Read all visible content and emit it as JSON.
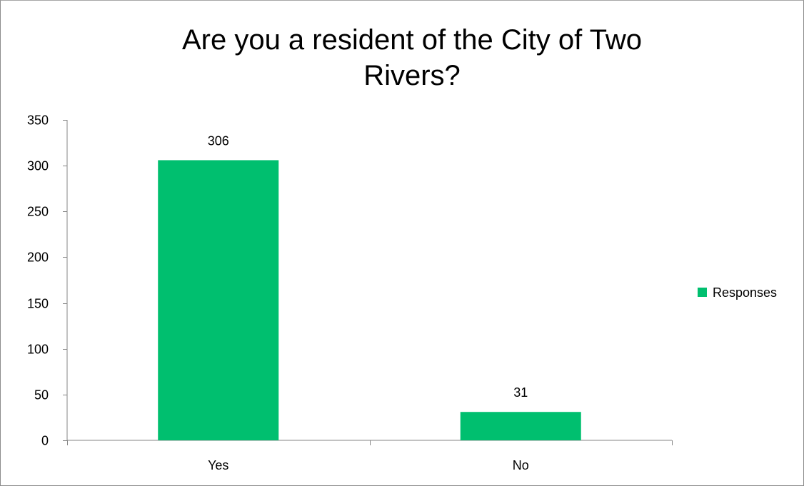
{
  "chart_data": {
    "type": "bar",
    "title_lines": [
      "Are you a resident of the City of Two",
      "Rivers?"
    ],
    "categories": [
      "Yes",
      "No"
    ],
    "series": [
      {
        "name": "Responses",
        "values": [
          306,
          31
        ],
        "color": "#00bf6f"
      }
    ],
    "data_labels": [
      "306",
      "31"
    ],
    "ylim": [
      0,
      350
    ],
    "y_ticks": [
      0,
      50,
      100,
      150,
      200,
      250,
      300,
      350
    ],
    "y_tick_labels": [
      "0",
      "50",
      "100",
      "150",
      "200",
      "250",
      "300",
      "350"
    ],
    "grid": false,
    "legend_position": "right"
  }
}
